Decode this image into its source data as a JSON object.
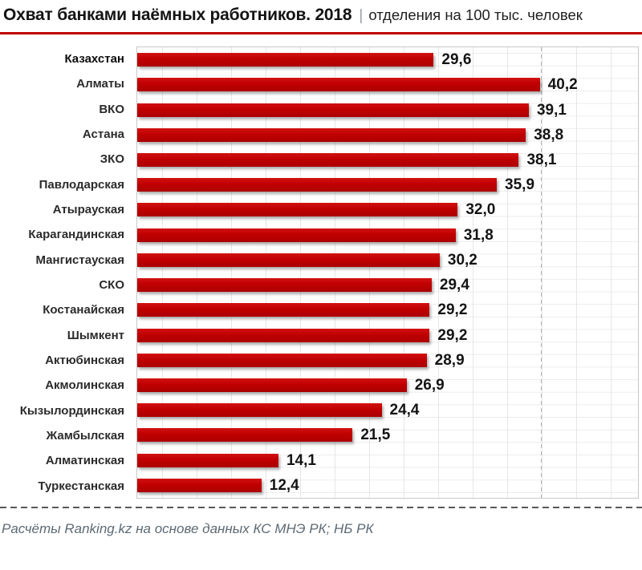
{
  "header": {
    "title": "Охват банками наёмных работников. 2018",
    "separator": "|",
    "subtitle": "отделения на 100 тыс. человек"
  },
  "footer": {
    "source": "Расчёты Ranking.kz на основе данных КС МНЭ РК; НБ РК"
  },
  "colors": {
    "bar": "#c00000",
    "title_rule": "#c00000",
    "value_label": "#141414",
    "category_label": "#2b2b2b",
    "sheet_gridline": "#e6e6e6",
    "page_break_dash": "#595959",
    "footer_text": "#5d6a74"
  },
  "chart_data": {
    "type": "bar",
    "orientation": "horizontal",
    "title": "Охват банками наёмных работников. 2018",
    "subtitle": "отделения на 100 тыс. человек",
    "categories": [
      "Казахстан",
      "Алматы",
      "ВКО",
      "Астана",
      "ЗКО",
      "Павлодарская",
      "Атырауская",
      "Карагандинская",
      "Мангистауская",
      "СКО",
      "Костанайская",
      "Шымкент",
      "Актюбинская",
      "Акмолинская",
      "Кызылординская",
      "Жамбылская",
      "Алматинская",
      "Туркестанская"
    ],
    "values": [
      29.6,
      40.2,
      39.1,
      38.8,
      38.1,
      35.9,
      32.0,
      31.8,
      30.2,
      29.4,
      29.2,
      29.2,
      28.9,
      26.9,
      24.4,
      21.5,
      14.1,
      12.4
    ],
    "value_labels": [
      "29,6",
      "40,2",
      "39,1",
      "38,8",
      "38,1",
      "35,9",
      "32,0",
      "31,8",
      "30,2",
      "29,4",
      "29,2",
      "29,2",
      "28,9",
      "26,9",
      "24,4",
      "21,5",
      "14,1",
      "12,4"
    ],
    "xlabel": "",
    "ylabel": "",
    "xlim": [
      0,
      50
    ],
    "grid": "excel-sheet-cells-visible-behind-transparent-plot",
    "legend": false,
    "data_labels": "outside-end",
    "source": "Расчёты Ranking.kz на основе данных КС МНЭ РК; НБ РК"
  }
}
